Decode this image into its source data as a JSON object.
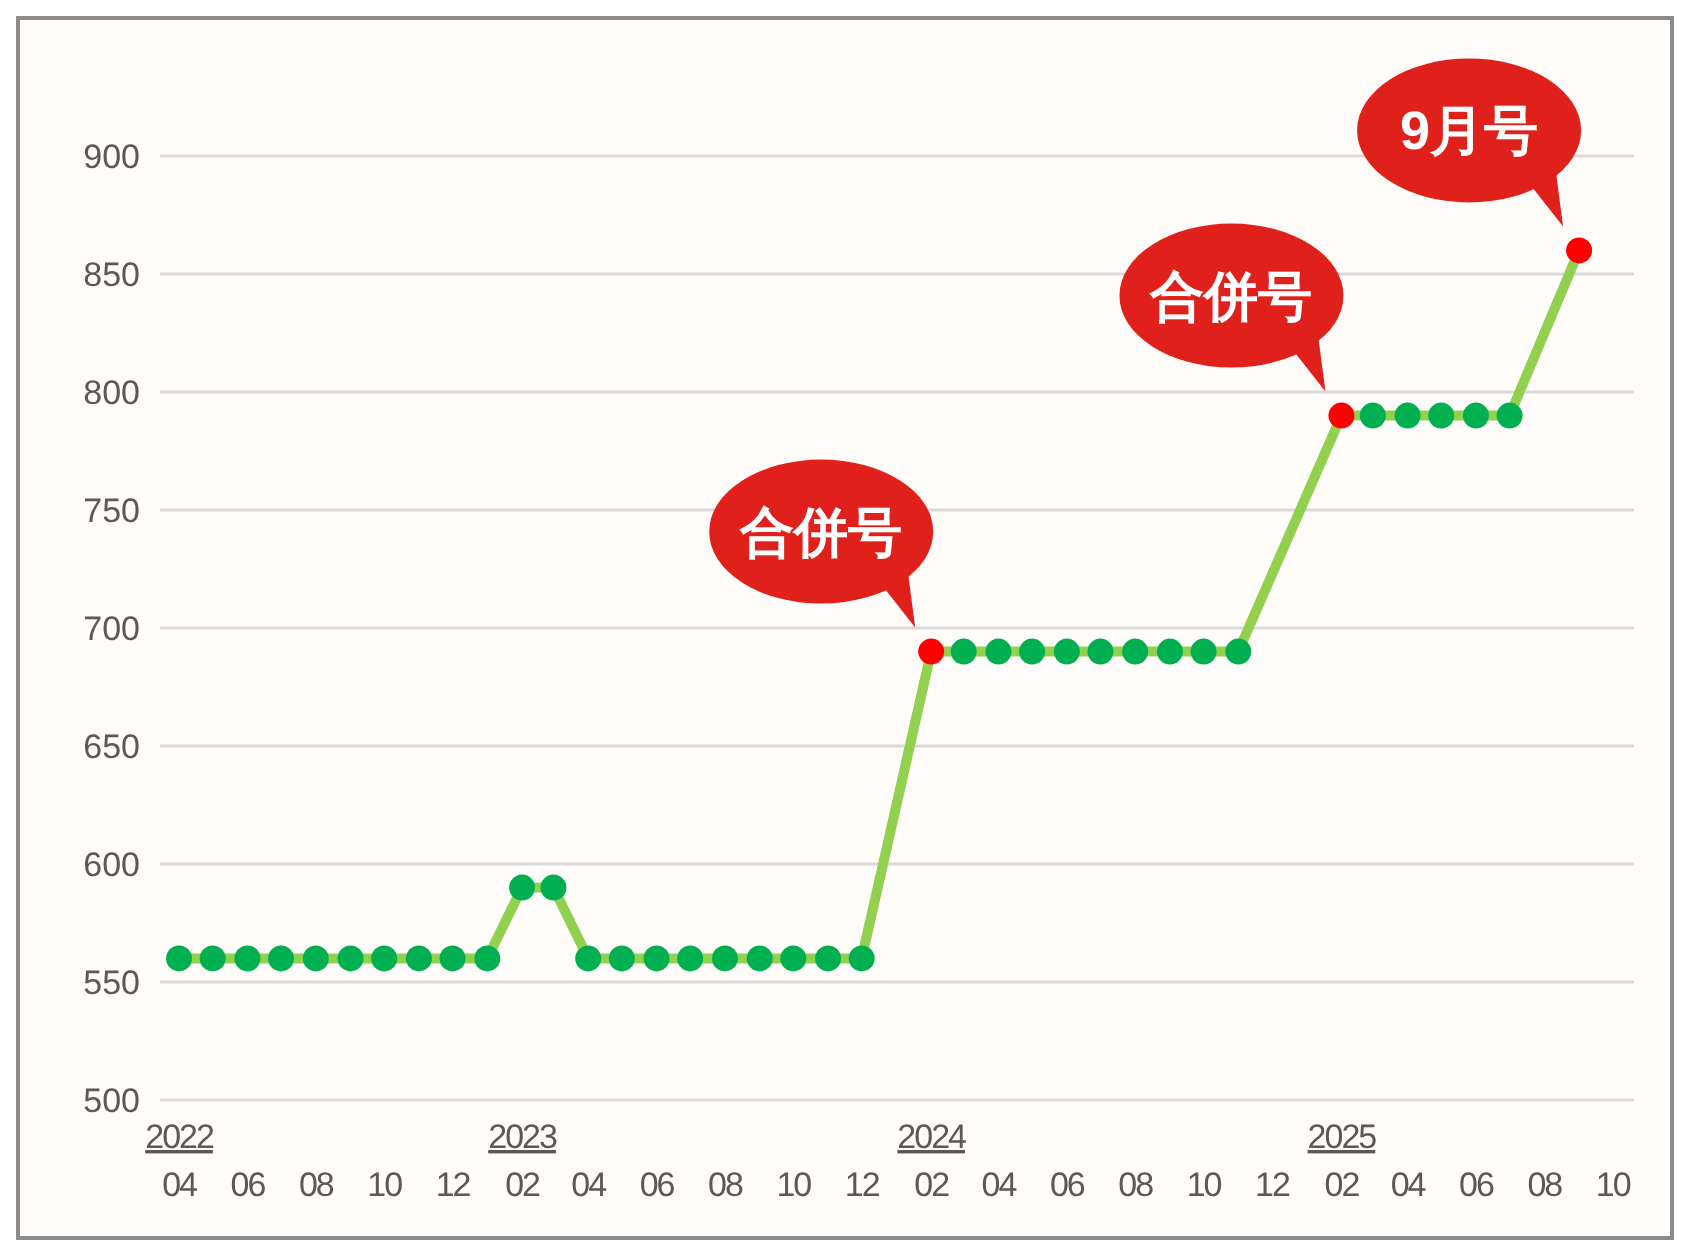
{
  "chart_data": {
    "type": "line",
    "x": [
      "2022-04",
      "2022-05",
      "2022-06",
      "2022-07",
      "2022-08",
      "2022-09",
      "2022-10",
      "2022-11",
      "2022-12",
      "2023-01",
      "2023-02",
      "2023-03",
      "2023-04",
      "2023-05",
      "2023-06",
      "2023-07",
      "2023-08",
      "2023-09",
      "2023-10",
      "2023-11",
      "2023-12",
      "2024-02",
      "2024-03",
      "2024-04",
      "2024-05",
      "2024-06",
      "2024-07",
      "2024-08",
      "2024-09",
      "2024-10",
      "2024-11",
      "2025-02",
      "2025-03",
      "2025-04",
      "2025-05",
      "2025-06",
      "2025-07",
      "2025-09"
    ],
    "series": [
      {
        "color": "#92d050",
        "values": [
          560,
          560,
          560,
          560,
          560,
          560,
          560,
          560,
          560,
          560,
          590,
          590,
          560,
          560,
          560,
          560,
          560,
          560,
          560,
          560,
          560,
          690,
          690,
          690,
          690,
          690,
          690,
          690,
          690,
          690,
          690,
          790,
          790,
          790,
          790,
          790,
          790,
          860
        ],
        "colors": [
          "#00b050",
          "#00b050",
          "#00b050",
          "#00b050",
          "#00b050",
          "#00b050",
          "#00b050",
          "#00b050",
          "#00b050",
          "#00b050",
          "#00b050",
          "#00b050",
          "#00b050",
          "#00b050",
          "#00b050",
          "#00b050",
          "#00b050",
          "#00b050",
          "#00b050",
          "#00b050",
          "#00b050",
          "#ff0000",
          "#00b050",
          "#00b050",
          "#00b050",
          "#00b050",
          "#00b050",
          "#00b050",
          "#00b050",
          "#00b050",
          "#00b050",
          "#ff0000",
          "#00b050",
          "#00b050",
          "#00b050",
          "#00b050",
          "#00b050",
          "#ff0000"
        ]
      }
    ],
    "marker": "circle",
    "grid": "y",
    "ylim": [
      500,
      900
    ],
    "yticks": [
      500,
      550,
      600,
      650,
      700,
      750,
      800,
      850,
      900
    ],
    "xlim": [
      "2022-03-15",
      "2025-10-20"
    ],
    "xticks": [
      {
        "value": "2022-04",
        "label": "2022\n04"
      },
      {
        "value": "2022-06",
        "label": "06"
      },
      {
        "value": "2022-08",
        "label": "08"
      },
      {
        "value": "2022-10",
        "label": "10"
      },
      {
        "value": "2022-12",
        "label": "12"
      },
      {
        "value": "2023-02",
        "label": "2023\n02"
      },
      {
        "value": "2023-04",
        "label": "04"
      },
      {
        "value": "2023-06",
        "label": "06"
      },
      {
        "value": "2023-08",
        "label": "08"
      },
      {
        "value": "2023-10",
        "label": "10"
      },
      {
        "value": "2023-12",
        "label": "12"
      },
      {
        "value": "2024-02",
        "label": "2024\n02"
      },
      {
        "value": "2024-04",
        "label": "04"
      },
      {
        "value": "2024-06",
        "label": "06"
      },
      {
        "value": "2024-08",
        "label": "08"
      },
      {
        "value": "2024-10",
        "label": "10"
      },
      {
        "value": "2024-12",
        "label": "12"
      },
      {
        "value": "2025-02",
        "label": "2025\n02"
      },
      {
        "value": "2025-04",
        "label": "04"
      },
      {
        "value": "2025-06",
        "label": "06"
      },
      {
        "value": "2025-08",
        "label": "08"
      },
      {
        "value": "2025-10",
        "label": "10"
      }
    ],
    "annotations": [
      {
        "text": "合併号",
        "x": "2024-02",
        "y": 690
      },
      {
        "text": "合併号",
        "x": "2025-02",
        "y": 790
      },
      {
        "text": "9月号",
        "x": "2025-09",
        "y": 860
      }
    ]
  }
}
